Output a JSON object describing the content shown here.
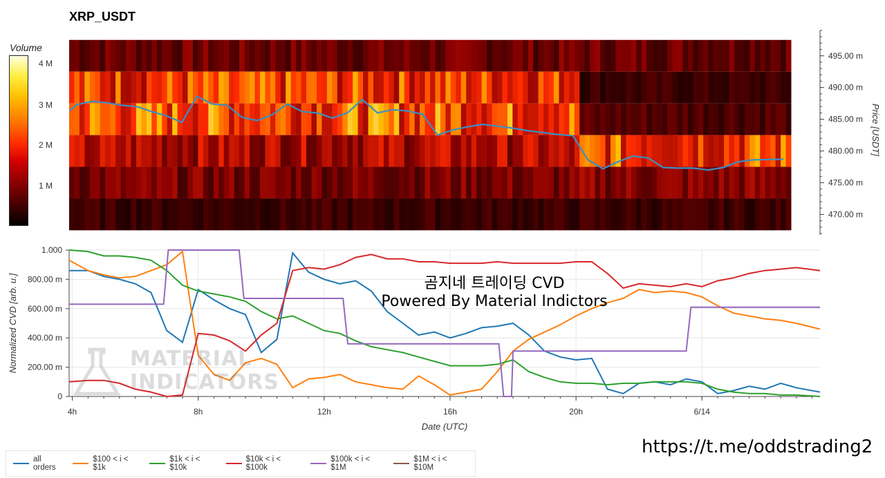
{
  "title": "XRP_USDT",
  "overlay_text": {
    "line1": "곰지네 트레이딩 CVD",
    "line2": "Powered By Material Indictors"
  },
  "url": "https://t.me/oddstrading2",
  "watermark": {
    "line1": "MATERIAL",
    "line2": "INDICATORS",
    "icon": "flask-icon"
  },
  "colorbar": {
    "title": "Volume",
    "ticks": [
      "4 M",
      "3 M",
      "2 M",
      "1 M"
    ],
    "colors": [
      "#000000",
      "#8a0000",
      "#ff2a00",
      "#ffc000",
      "#ffffe0"
    ]
  },
  "chart_data": [
    {
      "type": "heatmap",
      "title": "XRP_USDT",
      "ylabel": "Price [USDT]",
      "ylim": [
        467,
        499
      ],
      "yticks": [
        {
          "value": 495,
          "label": "495.00 m"
        },
        {
          "value": 490,
          "label": "490.00 m"
        },
        {
          "value": 485,
          "label": "485.00 m"
        },
        {
          "value": 480,
          "label": "480.00 m"
        },
        {
          "value": 475,
          "label": "475.00 m"
        },
        {
          "value": 470,
          "label": "470.00 m"
        }
      ],
      "price_bands": [
        {
          "low": 492.5,
          "high": 497.5,
          "volume_m": 0.9
        },
        {
          "low": 487.5,
          "high": 492.5,
          "volume_m": 2.3
        },
        {
          "low": 482.5,
          "high": 487.5,
          "volume_m": 2.6
        },
        {
          "low": 477.5,
          "high": 482.5,
          "volume_m": 1.5
        },
        {
          "low": 472.5,
          "high": 477.5,
          "volume_m": 1.0
        },
        {
          "low": 467.5,
          "high": 472.5,
          "volume_m": 0.5
        }
      ],
      "price_line": {
        "color": "#3a8fc4",
        "x_hours": [
          3.75,
          4,
          4.5,
          5,
          5.5,
          6,
          6.5,
          7,
          7.5,
          8,
          8.5,
          9,
          9.5,
          10,
          10.5,
          11,
          11.5,
          12,
          12.5,
          13,
          13.5,
          14,
          14.5,
          15,
          15.5,
          16,
          16.5,
          17,
          17.5,
          18,
          18.5,
          19,
          19.5,
          20,
          20.5,
          21,
          21.5,
          22,
          22.5,
          23,
          23.5,
          24,
          24.5,
          25,
          25.5,
          26,
          26.5,
          27.5
        ],
        "values": [
          486.3,
          487.3,
          487.8,
          487.6,
          487.2,
          487.0,
          486.2,
          485.5,
          484.5,
          488.6,
          487.4,
          487.2,
          485.3,
          484.8,
          485.7,
          487.4,
          486.2,
          486.0,
          485.2,
          486.0,
          488.1,
          486.0,
          486.5,
          486.3,
          485.8,
          482.5,
          483.3,
          483.8,
          484.2,
          483.9,
          483.6,
          483.2,
          482.9,
          482.6,
          482.4,
          478.6,
          477.2,
          478.3,
          479.2,
          478.9,
          477.4,
          477.3,
          477.3,
          477.0,
          477.4,
          478.3,
          478.6,
          478.7
        ]
      }
    },
    {
      "type": "line",
      "xlabel": "Date (UTC)",
      "ylabel": "Normalized CVD [arb. u.]",
      "xlim": [
        3.9,
        27.75
      ],
      "ylim": [
        0,
        1.0
      ],
      "xticks": [
        {
          "value": 4,
          "label": "4h"
        },
        {
          "value": 8,
          "label": "8h"
        },
        {
          "value": 12,
          "label": "12h"
        },
        {
          "value": 16,
          "label": "16h"
        },
        {
          "value": 20,
          "label": "20h"
        },
        {
          "value": 24,
          "label": "6/14"
        }
      ],
      "yticks": [
        {
          "value": 0,
          "label": "0"
        },
        {
          "value": 0.2,
          "label": "200.00 m"
        },
        {
          "value": 0.4,
          "label": "400.00 m"
        },
        {
          "value": 0.6,
          "label": "600.00 m"
        },
        {
          "value": 0.8,
          "label": "800.00 m"
        },
        {
          "value": 1.0,
          "label": "1.000"
        }
      ],
      "grid": true,
      "legend_position": "bottom-left",
      "series": [
        {
          "name": "all orders",
          "color": "#1f77b4",
          "x": [
            3.9,
            4.5,
            5,
            5.5,
            6,
            6.5,
            7,
            7.5,
            8,
            8.5,
            9,
            9.5,
            10,
            10.5,
            11,
            11.5,
            12,
            12.5,
            13,
            13.5,
            14,
            14.5,
            15,
            15.5,
            16,
            16.5,
            17,
            17.5,
            18,
            18.5,
            19,
            19.5,
            20,
            20.5,
            21,
            21.5,
            22,
            22.5,
            23,
            23.5,
            24,
            24.5,
            25,
            25.5,
            26,
            26.5,
            27,
            27.75
          ],
          "values": [
            0.86,
            0.86,
            0.82,
            0.8,
            0.77,
            0.71,
            0.45,
            0.37,
            0.73,
            0.66,
            0.6,
            0.56,
            0.3,
            0.39,
            0.98,
            0.85,
            0.8,
            0.77,
            0.79,
            0.72,
            0.58,
            0.5,
            0.42,
            0.44,
            0.4,
            0.43,
            0.47,
            0.48,
            0.5,
            0.42,
            0.31,
            0.27,
            0.25,
            0.26,
            0.05,
            0.02,
            0.09,
            0.1,
            0.08,
            0.12,
            0.1,
            0.02,
            0.04,
            0.07,
            0.05,
            0.09,
            0.06,
            0.03
          ]
        },
        {
          "name": "$100 < i < $1k",
          "color": "#ff7f0e",
          "x": [
            3.9,
            4.5,
            5,
            5.5,
            6,
            6.5,
            7,
            7.5,
            8,
            8.5,
            9,
            9.5,
            10,
            10.5,
            11,
            11.5,
            12,
            12.5,
            13,
            13.5,
            14,
            14.5,
            15,
            15.5,
            16,
            16.5,
            17,
            17.5,
            18,
            18.5,
            19,
            19.5,
            20,
            20.5,
            21,
            21.5,
            22,
            22.5,
            23,
            23.5,
            24,
            24.5,
            25,
            25.5,
            26,
            26.5,
            27,
            27.75
          ],
          "values": [
            0.93,
            0.86,
            0.83,
            0.81,
            0.82,
            0.86,
            0.9,
            0.99,
            0.28,
            0.15,
            0.11,
            0.23,
            0.26,
            0.22,
            0.06,
            0.12,
            0.13,
            0.15,
            0.1,
            0.08,
            0.06,
            0.05,
            0.14,
            0.08,
            0.01,
            0.03,
            0.05,
            0.17,
            0.31,
            0.39,
            0.44,
            0.49,
            0.55,
            0.6,
            0.64,
            0.67,
            0.73,
            0.71,
            0.72,
            0.71,
            0.68,
            0.62,
            0.57,
            0.55,
            0.53,
            0.52,
            0.5,
            0.46
          ]
        },
        {
          "name": "$1k < i < $10k",
          "color": "#2ca02c",
          "x": [
            3.9,
            4.5,
            5,
            5.5,
            6,
            6.5,
            7,
            7.5,
            8,
            8.5,
            9,
            9.5,
            10,
            10.5,
            11,
            11.5,
            12,
            12.5,
            13,
            13.5,
            14,
            14.5,
            15,
            15.5,
            16,
            16.5,
            17,
            17.5,
            18,
            18.5,
            19,
            19.5,
            20,
            20.5,
            21,
            21.5,
            22,
            22.5,
            23,
            23.5,
            24,
            24.5,
            25,
            25.5,
            26,
            26.5,
            27,
            27.75
          ],
          "values": [
            1.0,
            0.99,
            0.96,
            0.96,
            0.95,
            0.93,
            0.86,
            0.76,
            0.72,
            0.7,
            0.68,
            0.65,
            0.58,
            0.53,
            0.55,
            0.5,
            0.45,
            0.43,
            0.38,
            0.34,
            0.32,
            0.3,
            0.27,
            0.24,
            0.21,
            0.21,
            0.21,
            0.22,
            0.25,
            0.17,
            0.13,
            0.1,
            0.09,
            0.09,
            0.08,
            0.09,
            0.09,
            0.1,
            0.1,
            0.1,
            0.09,
            0.05,
            0.03,
            0.02,
            0.02,
            0.01,
            0.01,
            0.0
          ]
        },
        {
          "name": "$10k < i < $100k",
          "color": "#d62728",
          "x": [
            3.9,
            4.5,
            5,
            5.5,
            6,
            6.5,
            7,
            7.5,
            8,
            8.5,
            9,
            9.5,
            10,
            10.5,
            11,
            11.5,
            12,
            12.5,
            13,
            13.5,
            14,
            14.5,
            15,
            15.5,
            16,
            16.5,
            17,
            17.5,
            18,
            18.5,
            19,
            19.5,
            20,
            20.5,
            21,
            21.5,
            22,
            22.5,
            23,
            23.5,
            24,
            24.5,
            25,
            25.5,
            26,
            26.5,
            27,
            27.75
          ],
          "values": [
            0.1,
            0.11,
            0.11,
            0.09,
            0.05,
            0.03,
            0.0,
            0.01,
            0.43,
            0.42,
            0.38,
            0.31,
            0.42,
            0.5,
            0.86,
            0.88,
            0.87,
            0.9,
            0.95,
            0.97,
            0.94,
            0.94,
            0.92,
            0.92,
            0.91,
            0.91,
            0.91,
            0.92,
            0.91,
            0.91,
            0.91,
            0.91,
            0.92,
            0.92,
            0.84,
            0.74,
            0.77,
            0.76,
            0.75,
            0.77,
            0.75,
            0.79,
            0.81,
            0.84,
            0.86,
            0.87,
            0.88,
            0.86
          ]
        },
        {
          "name": "$100k < i < $1M",
          "color": "#9467bd",
          "x": [
            3.9,
            6.9,
            7.05,
            9.3,
            9.45,
            12.6,
            12.75,
            17.55,
            17.7,
            17.95,
            18.0,
            23.5,
            23.65,
            27.75
          ],
          "values": [
            0.63,
            0.63,
            1.0,
            1.0,
            0.67,
            0.67,
            0.36,
            0.36,
            0.0,
            0.0,
            0.31,
            0.31,
            0.61,
            0.61
          ]
        },
        {
          "name": "$1M < i < $10M",
          "color": "#8c564b",
          "x": [],
          "values": []
        }
      ]
    }
  ]
}
